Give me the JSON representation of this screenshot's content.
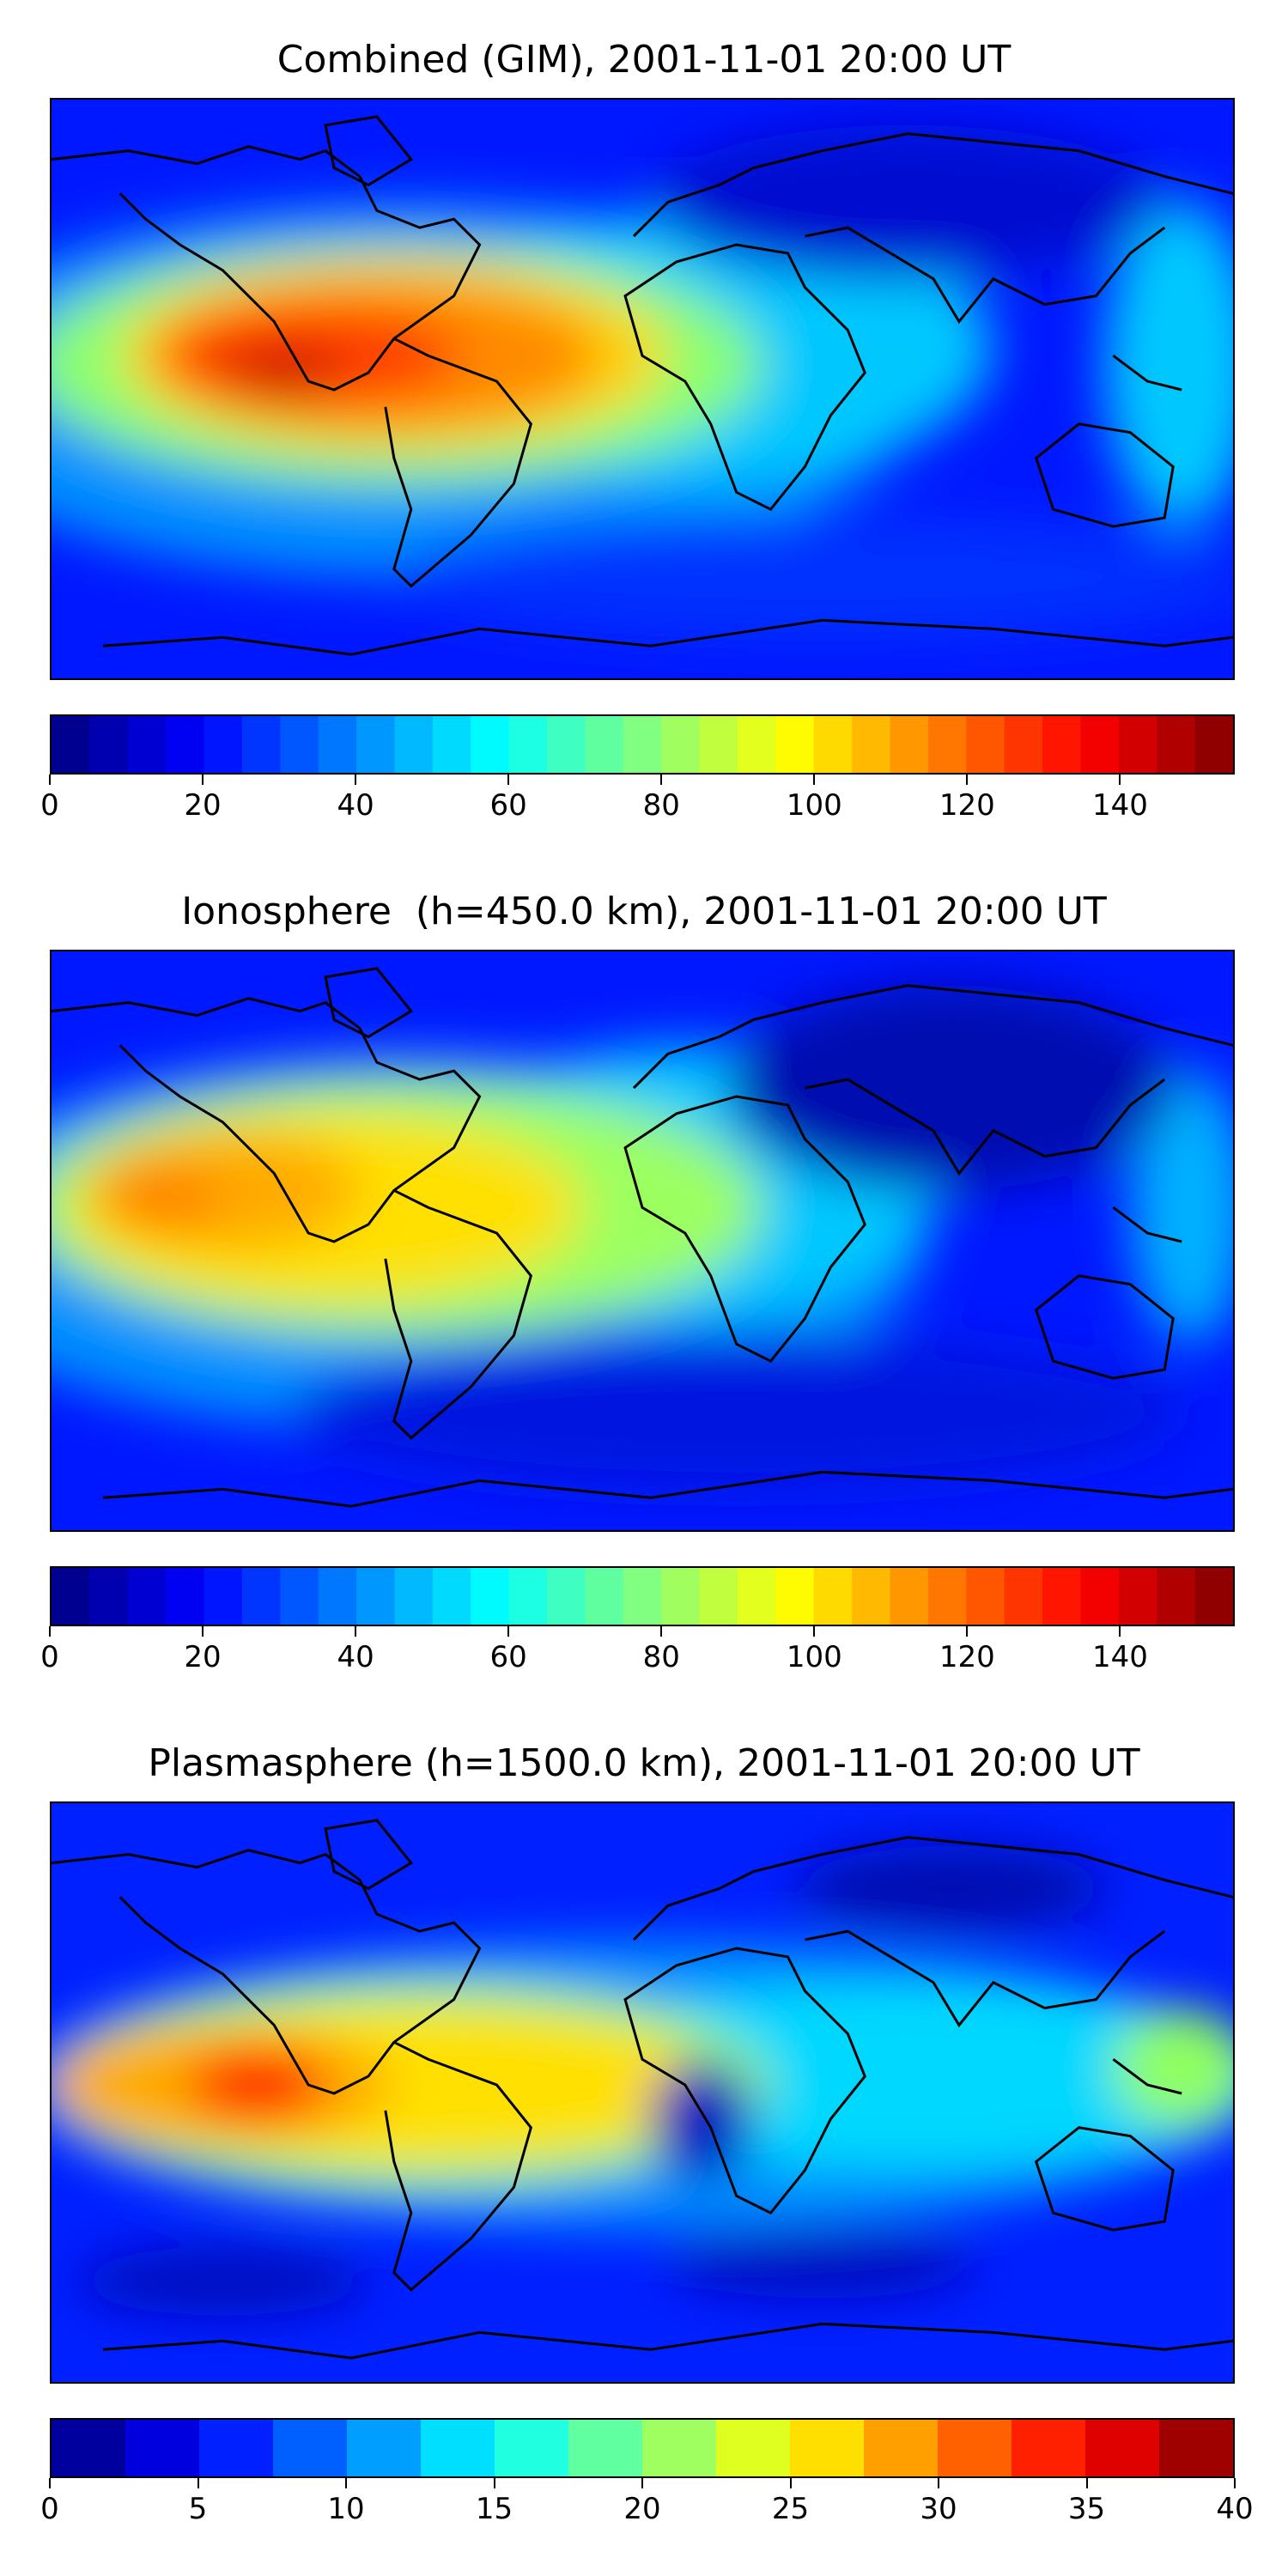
{
  "panels": [
    {
      "title": "Combined (GIM), 2001-11-01 20:00 UT",
      "colorbar": {
        "min": 0,
        "max": 155,
        "levels": 31,
        "tick_labels": [
          "0",
          "20",
          "40",
          "60",
          "80",
          "100",
          "120",
          "140"
        ],
        "tick_values": [
          0,
          20,
          40,
          60,
          80,
          100,
          120,
          140
        ]
      }
    },
    {
      "title": "Ionosphere  (h=450.0 km), 2001-11-01 20:00 UT",
      "colorbar": {
        "min": 0,
        "max": 155,
        "levels": 31,
        "tick_labels": [
          "0",
          "20",
          "40",
          "60",
          "80",
          "100",
          "120",
          "140"
        ],
        "tick_values": [
          0,
          20,
          40,
          60,
          80,
          100,
          120,
          140
        ]
      }
    },
    {
      "title": "Plasmasphere (h=1500.0 km), 2001-11-01 20:00 UT",
      "colorbar": {
        "min": 0,
        "max": 40,
        "levels": 16,
        "tick_labels": [
          "0",
          "5",
          "10",
          "15",
          "20",
          "25",
          "30",
          "35",
          "40"
        ],
        "tick_values": [
          0,
          5,
          10,
          15,
          20,
          25,
          30,
          35,
          40
        ]
      }
    }
  ],
  "chart_data": [
    {
      "type": "heatmap",
      "title": "Combined (GIM), 2001-11-01 20:00 UT",
      "colormap": "jet",
      "vmin": 0,
      "vmax": 155,
      "features": [
        {
          "region": "tropical eastern Pacific / South America",
          "value": 150
        },
        {
          "region": "Africa / Atlantic equatorial band",
          "value": 70
        },
        {
          "region": "Asia night side",
          "value": 15
        }
      ]
    },
    {
      "type": "heatmap",
      "title": "Ionosphere  (h=450.0 km), 2001-11-01 20:00 UT",
      "colormap": "jet",
      "vmin": 0,
      "vmax": 155,
      "features": [
        {
          "region": "tropical eastern Pacific / South America",
          "value": 110
        },
        {
          "region": "Africa / Atlantic equatorial band",
          "value": 60
        },
        {
          "region": "Asia night side",
          "value": 8
        }
      ]
    },
    {
      "type": "heatmap",
      "title": "Plasmasphere (h=1500.0 km), 2001-11-01 20:00 UT",
      "colormap": "jet",
      "vmin": 0,
      "vmax": 40,
      "features": [
        {
          "region": "equatorial eastern Pacific",
          "value": 35
        },
        {
          "region": "South America",
          "value": 26
        },
        {
          "region": "Indian Ocean / Asia band",
          "value": 17
        },
        {
          "region": "high latitudes",
          "value": 6
        }
      ]
    }
  ]
}
